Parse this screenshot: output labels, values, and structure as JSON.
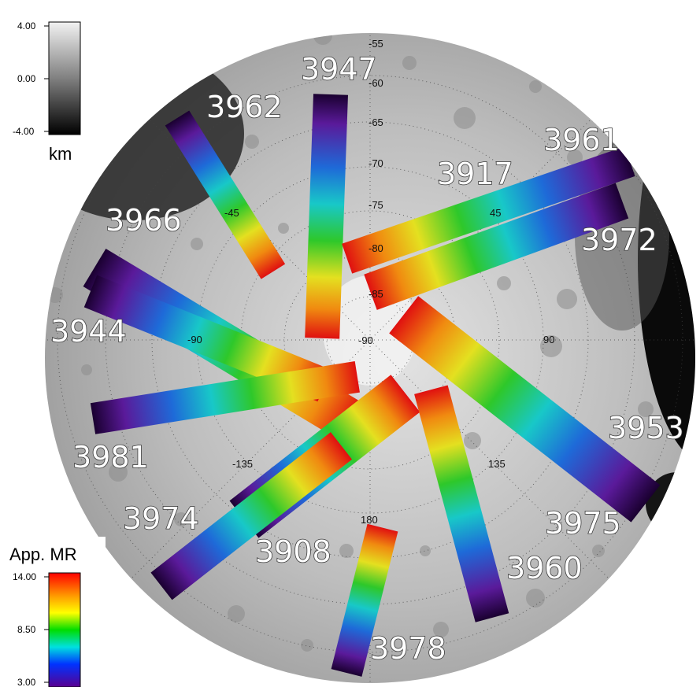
{
  "elevation_legend": {
    "tick_labels": [
      "4.00",
      "0.00",
      "-4.00"
    ],
    "unit": "km"
  },
  "mr_legend": {
    "title": "App. MR",
    "tick_labels": [
      "14.00",
      "8.50",
      "3.00"
    ]
  },
  "latitude_labels": [
    "-55",
    "-60",
    "-65",
    "-70",
    "-75",
    "-80",
    "-85",
    "-90"
  ],
  "longitude_labels": [
    "-45",
    "45",
    "-90",
    "90",
    "-135",
    "135",
    "180"
  ],
  "orbits": [
    {
      "id": "3947",
      "label": "3947"
    },
    {
      "id": "3962",
      "label": "3962"
    },
    {
      "id": "3961",
      "label": "3961"
    },
    {
      "id": "3917",
      "label": "3917"
    },
    {
      "id": "3966",
      "label": "3966"
    },
    {
      "id": "3972",
      "label": "3972"
    },
    {
      "id": "3944",
      "label": "3944"
    },
    {
      "id": "3953",
      "label": "3953"
    },
    {
      "id": "3981",
      "label": "3981"
    },
    {
      "id": "3974",
      "label": "3974"
    },
    {
      "id": "3975",
      "label": "3975"
    },
    {
      "id": "3908",
      "label": "3908"
    },
    {
      "id": "3960",
      "label": "3960"
    },
    {
      "id": "3978",
      "label": "3978"
    }
  ],
  "colors": {
    "mr_high": "#ff0000",
    "mr_mid": "#00cc00",
    "mr_low": "#3a0078",
    "terrain_high": "#f2f2f2",
    "terrain_low": "#000000"
  }
}
